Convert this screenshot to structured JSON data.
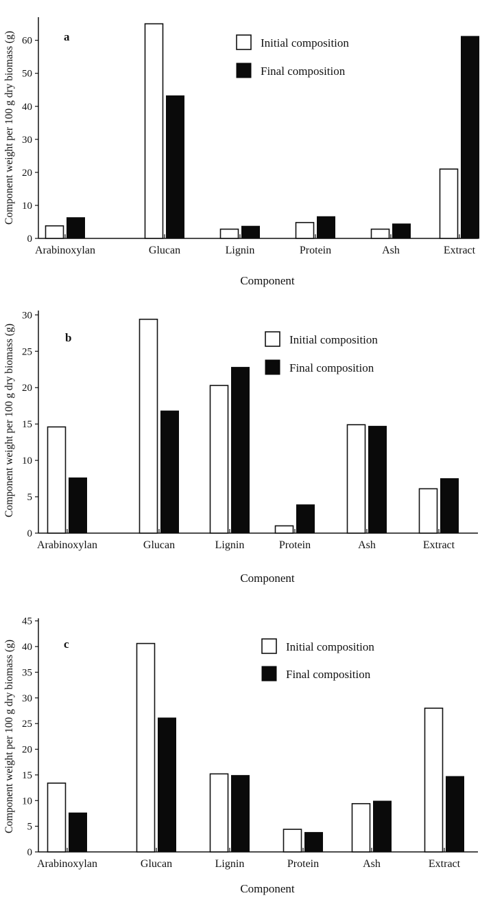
{
  "chart_data": [
    {
      "type": "bar",
      "panel_label": "a",
      "categories": [
        "Arabinoxylan",
        "Glucan",
        "Lignin",
        "Protein",
        "Ash",
        "Extract"
      ],
      "series": [
        {
          "name": "Initial composition",
          "values": [
            3.8,
            65.0,
            2.8,
            4.8,
            2.8,
            21.0
          ],
          "color": "#ffffff"
        },
        {
          "name": "Final composition",
          "values": [
            6.3,
            43.2,
            3.7,
            6.6,
            4.4,
            61.2
          ],
          "color": "#0a0a0a"
        }
      ],
      "xlabel": "Component",
      "ylabel": "Component weight per 100 g dry biomass (g)",
      "ylim": [
        0,
        67
      ],
      "yticks": [
        0,
        10,
        20,
        30,
        40,
        50,
        60
      ],
      "legend_position": "top-right",
      "grid": false
    },
    {
      "type": "bar",
      "panel_label": "b",
      "categories": [
        "Arabinoxylan",
        "Glucan",
        "Lignin",
        "Protein",
        "Ash",
        "Extract"
      ],
      "series": [
        {
          "name": "Initial composition",
          "values": [
            14.6,
            29.4,
            20.3,
            1.0,
            14.9,
            6.1
          ],
          "color": "#ffffff"
        },
        {
          "name": "Final composition",
          "values": [
            7.6,
            16.8,
            22.8,
            3.9,
            14.7,
            7.5
          ],
          "color": "#0a0a0a"
        }
      ],
      "xlabel": "Component",
      "ylabel": "Component weight per 100 g dry biomass (g)",
      "ylim": [
        0,
        30.6
      ],
      "yticks": [
        0,
        5,
        10,
        15,
        20,
        25,
        30
      ],
      "legend_position": "top-right",
      "grid": false
    },
    {
      "type": "bar",
      "panel_label": "c",
      "categories": [
        "Arabinoxylan",
        "Glucan",
        "Lignin",
        "Protein",
        "Ash",
        "Extract"
      ],
      "series": [
        {
          "name": "Initial composition",
          "values": [
            13.4,
            40.6,
            15.2,
            4.4,
            9.4,
            28.0
          ],
          "color": "#ffffff"
        },
        {
          "name": "Final composition",
          "values": [
            7.6,
            26.1,
            14.9,
            3.8,
            9.9,
            14.7
          ],
          "color": "#0a0a0a"
        }
      ],
      "xlabel": "Component",
      "ylabel": "Component weight per 100 g dry biomass (g)",
      "ylim": [
        0,
        45.5
      ],
      "yticks": [
        0,
        5,
        10,
        15,
        20,
        25,
        30,
        35,
        40,
        45
      ],
      "legend_position": "top-right",
      "grid": false
    }
  ]
}
